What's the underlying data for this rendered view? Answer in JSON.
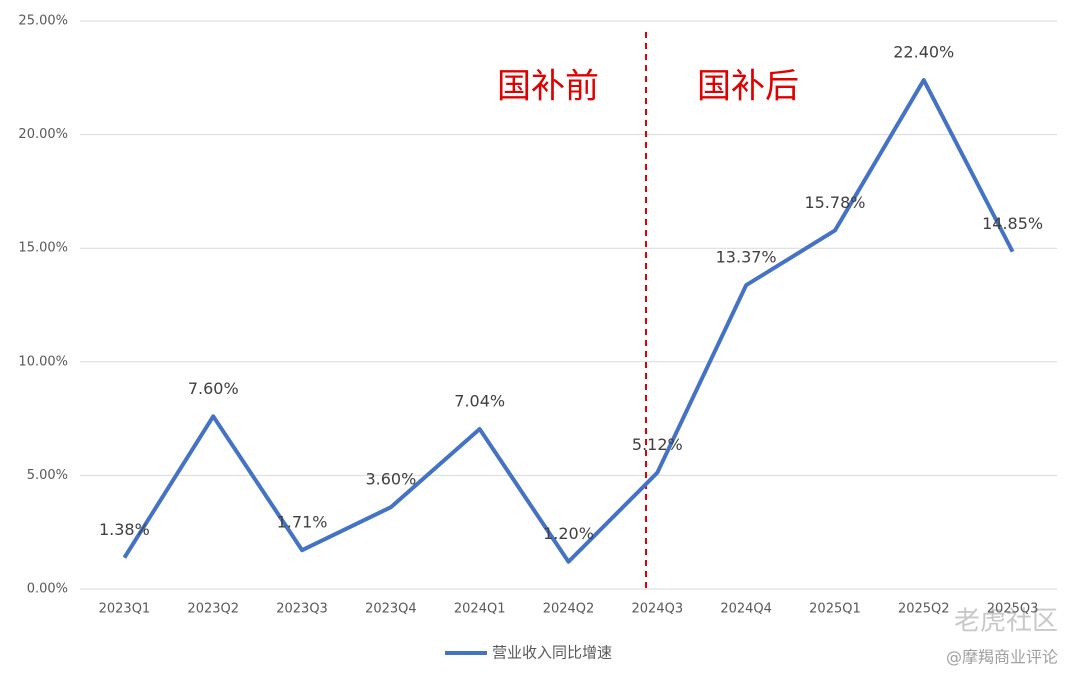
{
  "chart_data": {
    "type": "line",
    "categories": [
      "2023Q1",
      "2023Q2",
      "2023Q3",
      "2023Q4",
      "2024Q1",
      "2024Q2",
      "2024Q3",
      "2024Q4",
      "2025Q1",
      "2025Q2",
      "2025Q3"
    ],
    "series": [
      {
        "name": "营业收入同比增速",
        "color": "#4472c4",
        "values": [
          1.38,
          7.6,
          1.71,
          3.6,
          7.04,
          1.2,
          5.12,
          13.37,
          15.78,
          22.4,
          14.85
        ],
        "value_labels": [
          "1.38%",
          "7.60%",
          "1.71%",
          "3.60%",
          "7.04%",
          "1.20%",
          "5.12%",
          "13.37%",
          "15.78%",
          "22.40%",
          "14.85%"
        ]
      }
    ],
    "ylim": [
      0,
      25
    ],
    "yticks": [
      {
        "value": 0,
        "label": "0.00%"
      },
      {
        "value": 5,
        "label": "5.00%"
      },
      {
        "value": 10,
        "label": "10.00%"
      },
      {
        "value": 15,
        "label": "15.00%"
      },
      {
        "value": 20,
        "label": "20.00%"
      },
      {
        "value": 25,
        "label": "25.00%"
      }
    ],
    "grid": true,
    "annotations": [
      "国补前",
      "国补后"
    ],
    "watermarks": [
      "老虎社区",
      "@摩羯商业评论"
    ]
  }
}
